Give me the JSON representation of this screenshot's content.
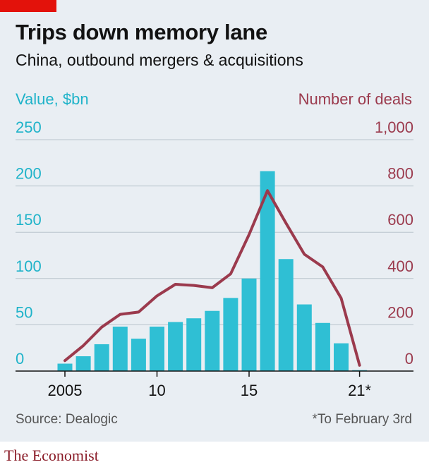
{
  "header": {
    "title": "Trips down memory lane",
    "subtitle": "China, outbound mergers & acquisitions"
  },
  "footer": {
    "source": "Source: Dealogic",
    "footnote": "*To February 3rd",
    "brand": "The Economist"
  },
  "colors": {
    "bars": "#2fbfd4",
    "line": "#9b3a4d",
    "left_axis": "#1fb3c9",
    "right_axis": "#9b3a4d",
    "accent": "#e3120b"
  },
  "chart_data": {
    "type": "bar",
    "x": [
      2005,
      2006,
      2007,
      2008,
      2009,
      2010,
      2011,
      2012,
      2013,
      2014,
      2015,
      2016,
      2017,
      2018,
      2019,
      2020,
      2021
    ],
    "x_tick_labels": [
      {
        "x": 2005,
        "label": "2005"
      },
      {
        "x": 2010,
        "label": "10"
      },
      {
        "x": 2015,
        "label": "15"
      },
      {
        "x": 2021,
        "label": "21*"
      }
    ],
    "left_axis": {
      "label": "Value, $bn",
      "lim": [
        0,
        250
      ],
      "ticks": [
        "0",
        "50",
        "100",
        "150",
        "200",
        "250"
      ]
    },
    "right_axis": {
      "label": "Number of deals",
      "lim": [
        0,
        1000
      ],
      "ticks": [
        "0",
        "200",
        "400",
        "600",
        "800",
        "1,000"
      ]
    },
    "grid": true,
    "series": [
      {
        "type": "bar",
        "axis": "left",
        "values": [
          8,
          16,
          29,
          48,
          35,
          48,
          53,
          57,
          65,
          79,
          100,
          216,
          121,
          72,
          52,
          30,
          1
        ]
      },
      {
        "type": "line",
        "axis": "right",
        "values": [
          45,
          110,
          190,
          245,
          255,
          325,
          375,
          370,
          360,
          420,
          590,
          780,
          640,
          505,
          450,
          315,
          25
        ]
      }
    ]
  }
}
